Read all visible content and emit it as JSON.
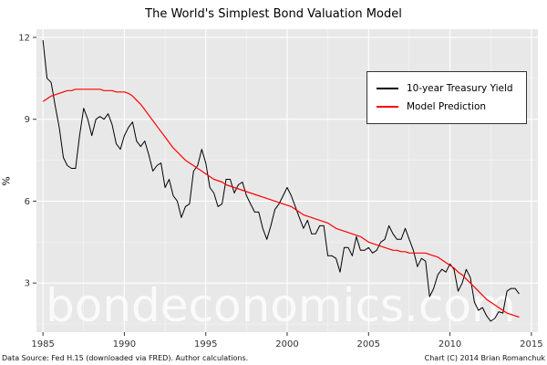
{
  "watermark": "bondeconomics.com",
  "footer": {
    "left": "Data Source: Fed H.15 (downloaded via FRED). Author calculations.",
    "right": "Chart (C) 2014 Brian Romanchuk"
  },
  "colors": {
    "panel_bg": "#e8e8e8",
    "grid_major": "#ffffff",
    "grid_minor": "#f2f2f2",
    "tick_text": "#333333",
    "treasury_line": "#000000",
    "model_line": "#ff0000",
    "watermark_text": "rgba(255,255,255,0.78)"
  },
  "chart_data": {
    "type": "line",
    "title": "The World's Simplest Bond Valuation Model",
    "xlabel": "",
    "ylabel": "%",
    "xlim": [
      1984.6,
      2015.4
    ],
    "ylim": [
      1.2,
      12.3
    ],
    "x_ticks": [
      1985,
      1990,
      1995,
      2000,
      2005,
      2010,
      2015
    ],
    "y_ticks": [
      3,
      6,
      9,
      12
    ],
    "x_minor_ticks": [
      1987.5,
      1992.5,
      1997.5,
      2002.5,
      2007.5,
      2012.5
    ],
    "y_minor_ticks": [
      1.5,
      4.5,
      7.5,
      10.5
    ],
    "grid": true,
    "legend_position": "upper right",
    "x_start": 1985.0,
    "x_step": 0.25,
    "series": [
      {
        "name": "10-year Treasury Yield",
        "color": "#000000",
        "values": [
          11.9,
          10.5,
          10.35,
          9.5,
          8.7,
          7.6,
          7.3,
          7.2,
          7.2,
          8.4,
          9.4,
          9.0,
          8.4,
          9.0,
          9.1,
          9.0,
          9.2,
          8.8,
          8.1,
          7.9,
          8.4,
          8.7,
          8.9,
          8.2,
          8.0,
          8.2,
          7.7,
          7.1,
          7.3,
          7.4,
          6.5,
          6.8,
          6.2,
          6.0,
          5.4,
          5.8,
          5.9,
          7.1,
          7.3,
          7.9,
          7.4,
          6.5,
          6.3,
          5.8,
          5.9,
          6.8,
          6.8,
          6.3,
          6.6,
          6.7,
          6.2,
          5.9,
          5.6,
          5.6,
          5.0,
          4.6,
          5.1,
          5.7,
          5.9,
          6.2,
          6.5,
          6.2,
          5.8,
          5.4,
          5.0,
          5.3,
          4.8,
          4.8,
          5.1,
          5.1,
          4.0,
          4.0,
          3.9,
          3.4,
          4.3,
          4.3,
          4.0,
          4.7,
          4.2,
          4.2,
          4.3,
          4.1,
          4.2,
          4.5,
          4.6,
          5.1,
          4.8,
          4.6,
          4.6,
          5.0,
          4.6,
          4.2,
          3.6,
          3.9,
          3.8,
          2.5,
          2.8,
          3.3,
          3.5,
          3.4,
          3.7,
          3.5,
          2.7,
          3.0,
          3.5,
          3.2,
          2.3,
          2.0,
          2.1,
          1.8,
          1.6,
          1.7,
          1.95,
          1.9,
          2.7,
          2.8,
          2.8,
          2.6
        ]
      },
      {
        "name": "Model Prediction",
        "color": "#ff0000",
        "values": [
          9.65,
          9.75,
          9.85,
          9.9,
          9.95,
          10.0,
          10.05,
          10.05,
          10.1,
          10.1,
          10.1,
          10.1,
          10.1,
          10.1,
          10.1,
          10.05,
          10.05,
          10.05,
          10.0,
          10.0,
          10.0,
          9.95,
          9.85,
          9.7,
          9.55,
          9.35,
          9.15,
          8.95,
          8.75,
          8.55,
          8.35,
          8.15,
          7.95,
          7.8,
          7.65,
          7.5,
          7.4,
          7.3,
          7.2,
          7.1,
          7.0,
          6.9,
          6.8,
          6.75,
          6.7,
          6.6,
          6.55,
          6.5,
          6.45,
          6.4,
          6.35,
          6.3,
          6.25,
          6.2,
          6.15,
          6.1,
          6.05,
          6.0,
          5.95,
          5.9,
          5.85,
          5.8,
          5.7,
          5.6,
          5.5,
          5.45,
          5.4,
          5.35,
          5.3,
          5.25,
          5.2,
          5.1,
          5.0,
          4.95,
          4.9,
          4.85,
          4.8,
          4.75,
          4.7,
          4.6,
          4.5,
          4.45,
          4.4,
          4.35,
          4.3,
          4.25,
          4.2,
          4.2,
          4.15,
          4.15,
          4.1,
          4.1,
          4.1,
          4.1,
          4.1,
          4.05,
          4.0,
          3.95,
          3.85,
          3.75,
          3.65,
          3.55,
          3.4,
          3.3,
          3.15,
          3.0,
          2.85,
          2.7,
          2.55,
          2.4,
          2.3,
          2.2,
          2.1,
          2.0,
          1.9,
          1.85,
          1.8,
          1.75
        ]
      }
    ]
  }
}
